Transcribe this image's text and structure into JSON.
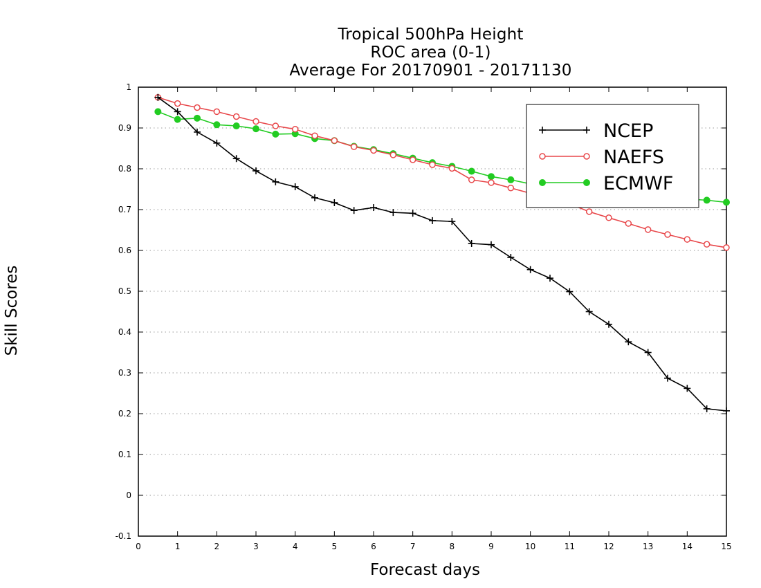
{
  "chart_data": {
    "type": "line",
    "title": "Tropical 500hPa Height",
    "subtitle": [
      "ROC area (0-1)",
      "Average For 20170901 - 20171130"
    ],
    "xlabel": "Forecast days",
    "ylabel": "Skill Scores",
    "xlim": [
      0,
      15
    ],
    "ylim": [
      -0.1,
      1
    ],
    "x_ticks": [
      "0",
      "1",
      "2",
      "3",
      "4",
      "5",
      "6",
      "7",
      "8",
      "9",
      "10",
      "11",
      "12",
      "13",
      "14",
      "15"
    ],
    "y_ticks": [
      "-0.1",
      "0",
      "0.1",
      "0.2",
      "0.3",
      "0.4",
      "0.5",
      "0.6",
      "0.7",
      "0.8",
      "0.9",
      "1"
    ],
    "grid": "horizontal-dotted",
    "legend_position": "top-right",
    "x": [
      0.5,
      1,
      1.5,
      2,
      2.5,
      3,
      3.5,
      4,
      4.5,
      5,
      5.5,
      6,
      6.5,
      7,
      7.5,
      8,
      8.5,
      9,
      9.5,
      10,
      10.5,
      11,
      11.5,
      12,
      12.5,
      13,
      13.5,
      14,
      14.5,
      15
    ],
    "series": [
      {
        "name": "NCEP",
        "color": "#000000",
        "marker": "plus",
        "values": [
          0.975,
          0.94,
          0.89,
          0.863,
          0.825,
          0.795,
          0.768,
          0.756,
          0.729,
          0.717,
          0.698,
          0.705,
          0.693,
          0.691,
          0.673,
          0.671,
          0.617,
          0.614,
          0.583,
          0.553,
          0.532,
          0.499,
          0.45,
          0.419,
          0.376,
          0.35,
          0.287,
          0.262,
          0.212,
          0.207
        ]
      },
      {
        "name": "NAEFS",
        "color": "#e8474a",
        "marker": "open-circle",
        "values": [
          0.975,
          0.96,
          0.95,
          0.94,
          0.928,
          0.916,
          0.905,
          0.897,
          0.881,
          0.869,
          0.854,
          0.845,
          0.834,
          0.822,
          0.81,
          0.801,
          0.773,
          0.766,
          0.753,
          0.74,
          0.727,
          0.714,
          0.695,
          0.68,
          0.666,
          0.651,
          0.639,
          0.627,
          0.615,
          0.607
        ]
      },
      {
        "name": "ECMWF",
        "color": "#22cc22",
        "marker": "filled-circle",
        "values": [
          0.94,
          0.921,
          0.924,
          0.908,
          0.905,
          0.898,
          0.885,
          0.886,
          0.874,
          0.869,
          0.855,
          0.847,
          0.837,
          0.826,
          0.815,
          0.806,
          0.794,
          0.781,
          0.773,
          0.763,
          0.755,
          0.75,
          0.745,
          0.74,
          0.735,
          0.731,
          0.728,
          0.726,
          0.723,
          0.718
        ]
      }
    ]
  }
}
